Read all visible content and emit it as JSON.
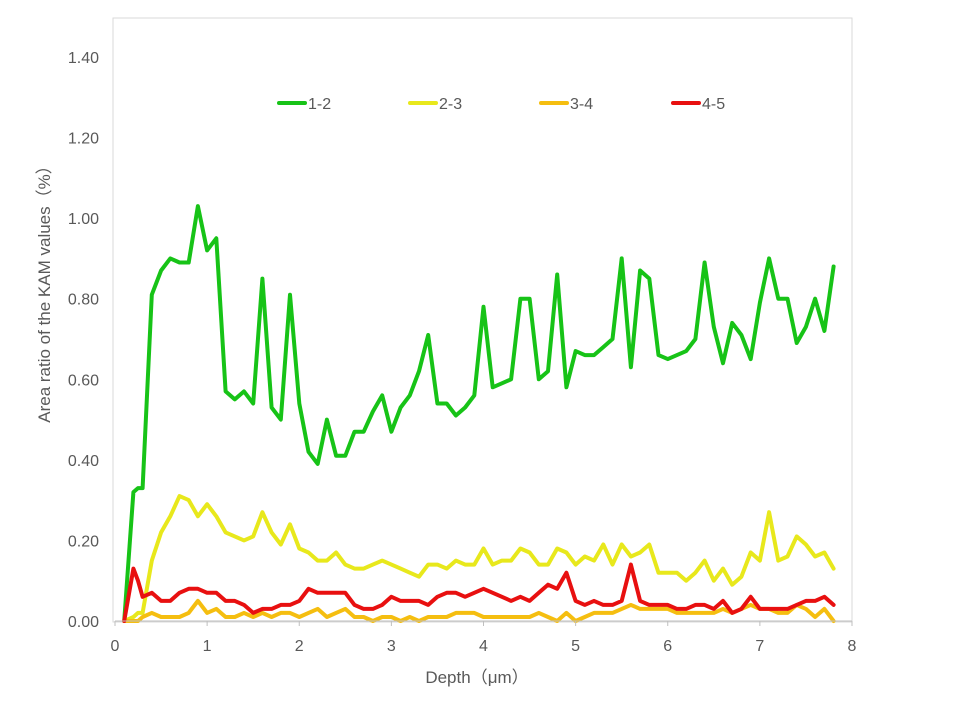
{
  "chart_data": {
    "type": "line",
    "title": "",
    "xlabel": "Depth（μm）",
    "ylabel": "Area ratio of the KAM values（%）",
    "xlim": [
      0,
      8
    ],
    "ylim": [
      0,
      1.4
    ],
    "xticks": [
      "0",
      "1",
      "2",
      "3",
      "4",
      "5",
      "6",
      "7",
      "8"
    ],
    "yticks": [
      "0.00",
      "0.20",
      "0.40",
      "0.60",
      "0.80",
      "1.00",
      "1.20",
      "1.40"
    ],
    "grid": false,
    "legend_position": "top",
    "x": [
      0.1,
      0.2,
      0.25,
      0.3,
      0.4,
      0.5,
      0.6,
      0.7,
      0.8,
      0.9,
      1.0,
      1.1,
      1.2,
      1.3,
      1.4,
      1.5,
      1.6,
      1.7,
      1.8,
      1.9,
      2.0,
      2.1,
      2.2,
      2.3,
      2.4,
      2.5,
      2.6,
      2.7,
      2.8,
      2.9,
      3.0,
      3.1,
      3.2,
      3.3,
      3.4,
      3.5,
      3.6,
      3.7,
      3.8,
      3.9,
      4.0,
      4.1,
      4.2,
      4.3,
      4.4,
      4.5,
      4.6,
      4.7,
      4.8,
      4.9,
      5.0,
      5.1,
      5.2,
      5.3,
      5.4,
      5.5,
      5.6,
      5.7,
      5.8,
      5.9,
      6.0,
      6.1,
      6.2,
      6.3,
      6.4,
      6.5,
      6.6,
      6.7,
      6.8,
      6.9,
      7.0,
      7.1,
      7.2,
      7.3,
      7.4,
      7.5,
      7.6,
      7.7,
      7.8
    ],
    "series": [
      {
        "name": "1-2",
        "color": "#17c317",
        "values": [
          0.0,
          0.32,
          0.33,
          0.33,
          0.81,
          0.87,
          0.9,
          0.89,
          0.89,
          1.03,
          0.92,
          0.95,
          0.57,
          0.55,
          0.57,
          0.54,
          0.85,
          0.53,
          0.5,
          0.81,
          0.54,
          0.42,
          0.39,
          0.5,
          0.41,
          0.41,
          0.47,
          0.47,
          0.52,
          0.56,
          0.47,
          0.53,
          0.56,
          0.62,
          0.71,
          0.54,
          0.54,
          0.51,
          0.53,
          0.56,
          0.78,
          0.58,
          0.59,
          0.6,
          0.8,
          0.8,
          0.6,
          0.62,
          0.86,
          0.58,
          0.67,
          0.66,
          0.66,
          0.68,
          0.7,
          0.9,
          0.63,
          0.87,
          0.85,
          0.66,
          0.65,
          0.66,
          0.67,
          0.7,
          0.89,
          0.73,
          0.64,
          0.74,
          0.71,
          0.65,
          0.79,
          0.9,
          0.8,
          0.8,
          0.69,
          0.73,
          0.8,
          0.72,
          0.88
        ]
      },
      {
        "name": "2-3",
        "color": "#e8e81c",
        "values": [
          0.0,
          0.01,
          0.02,
          0.02,
          0.15,
          0.22,
          0.26,
          0.31,
          0.3,
          0.26,
          0.29,
          0.26,
          0.22,
          0.21,
          0.2,
          0.21,
          0.27,
          0.22,
          0.19,
          0.24,
          0.18,
          0.17,
          0.15,
          0.15,
          0.17,
          0.14,
          0.13,
          0.13,
          0.14,
          0.15,
          0.14,
          0.13,
          0.12,
          0.11,
          0.14,
          0.14,
          0.13,
          0.15,
          0.14,
          0.14,
          0.18,
          0.14,
          0.15,
          0.15,
          0.18,
          0.17,
          0.14,
          0.14,
          0.18,
          0.17,
          0.14,
          0.16,
          0.15,
          0.19,
          0.14,
          0.19,
          0.16,
          0.17,
          0.19,
          0.12,
          0.12,
          0.12,
          0.1,
          0.12,
          0.15,
          0.1,
          0.13,
          0.09,
          0.11,
          0.17,
          0.15,
          0.27,
          0.15,
          0.16,
          0.21,
          0.19,
          0.16,
          0.17,
          0.13
        ]
      },
      {
        "name": "3-4",
        "color": "#f5be10",
        "values": [
          0.0,
          0.0,
          0.0,
          0.01,
          0.02,
          0.01,
          0.01,
          0.01,
          0.02,
          0.05,
          0.02,
          0.03,
          0.01,
          0.01,
          0.02,
          0.01,
          0.02,
          0.01,
          0.02,
          0.02,
          0.01,
          0.02,
          0.03,
          0.01,
          0.02,
          0.03,
          0.01,
          0.01,
          0.0,
          0.01,
          0.01,
          0.0,
          0.01,
          0.0,
          0.01,
          0.01,
          0.01,
          0.02,
          0.02,
          0.02,
          0.01,
          0.01,
          0.01,
          0.01,
          0.01,
          0.01,
          0.02,
          0.01,
          0.0,
          0.02,
          0.0,
          0.01,
          0.02,
          0.02,
          0.02,
          0.03,
          0.04,
          0.03,
          0.03,
          0.03,
          0.03,
          0.02,
          0.02,
          0.02,
          0.02,
          0.02,
          0.03,
          0.02,
          0.03,
          0.04,
          0.03,
          0.03,
          0.02,
          0.02,
          0.04,
          0.03,
          0.01,
          0.03,
          0.0
        ]
      },
      {
        "name": "4-5",
        "color": "#e81010",
        "values": [
          0.0,
          0.13,
          0.1,
          0.06,
          0.07,
          0.05,
          0.05,
          0.07,
          0.08,
          0.08,
          0.07,
          0.07,
          0.05,
          0.05,
          0.04,
          0.02,
          0.03,
          0.03,
          0.04,
          0.04,
          0.05,
          0.08,
          0.07,
          0.07,
          0.07,
          0.07,
          0.04,
          0.03,
          0.03,
          0.04,
          0.06,
          0.05,
          0.05,
          0.05,
          0.04,
          0.06,
          0.07,
          0.07,
          0.06,
          0.07,
          0.08,
          0.07,
          0.06,
          0.05,
          0.06,
          0.05,
          0.07,
          0.09,
          0.08,
          0.12,
          0.05,
          0.04,
          0.05,
          0.04,
          0.04,
          0.05,
          0.14,
          0.05,
          0.04,
          0.04,
          0.04,
          0.03,
          0.03,
          0.04,
          0.04,
          0.03,
          0.05,
          0.02,
          0.03,
          0.06,
          0.03,
          0.03,
          0.03,
          0.03,
          0.04,
          0.05,
          0.05,
          0.06,
          0.04
        ]
      }
    ]
  }
}
